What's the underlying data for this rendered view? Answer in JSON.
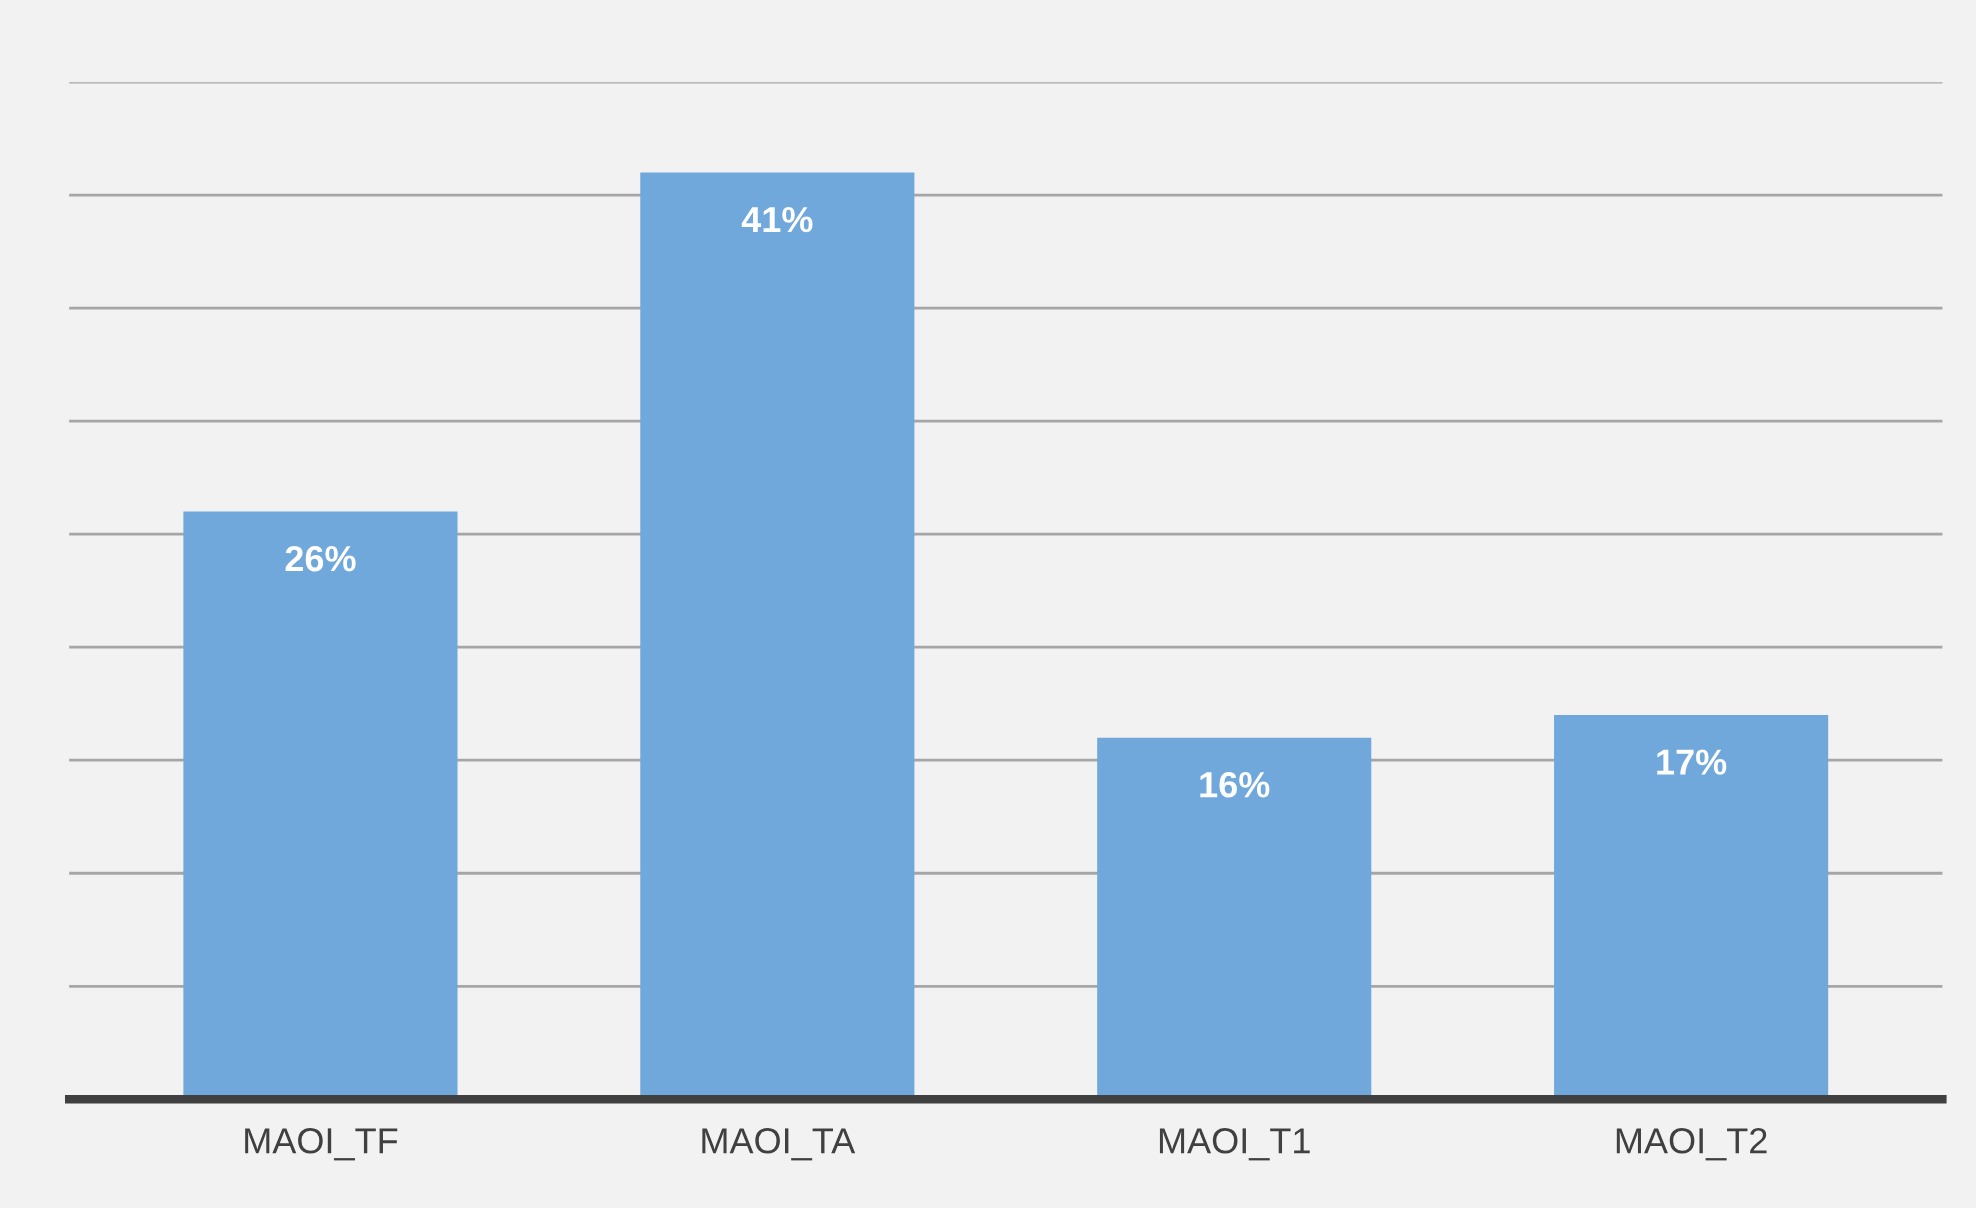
{
  "chart_data": {
    "type": "bar",
    "categories": [
      "MAOI_TF",
      "MAOI_TA",
      "MAOI_T1",
      "MAOI_T2"
    ],
    "values": [
      26,
      41,
      16,
      17
    ],
    "value_labels": [
      "26%",
      "41%",
      "16%",
      "17%"
    ],
    "color": "#70a8dc",
    "ylim": [
      0,
      45
    ],
    "yticks": [
      {
        "value": 0,
        "label": null
      },
      {
        "value": 5,
        "label": null
      },
      {
        "value": 10,
        "label": null
      },
      {
        "value": 15,
        "label": null
      },
      {
        "value": 20,
        "label": null
      },
      {
        "value": 25,
        "label": null
      },
      {
        "value": 30,
        "label": null
      },
      {
        "value": 35,
        "label": null
      },
      {
        "value": 40,
        "label": null
      },
      {
        "value": 45,
        "label": null
      }
    ],
    "tick_labels": "x",
    "grid": "y",
    "legend": false
  }
}
